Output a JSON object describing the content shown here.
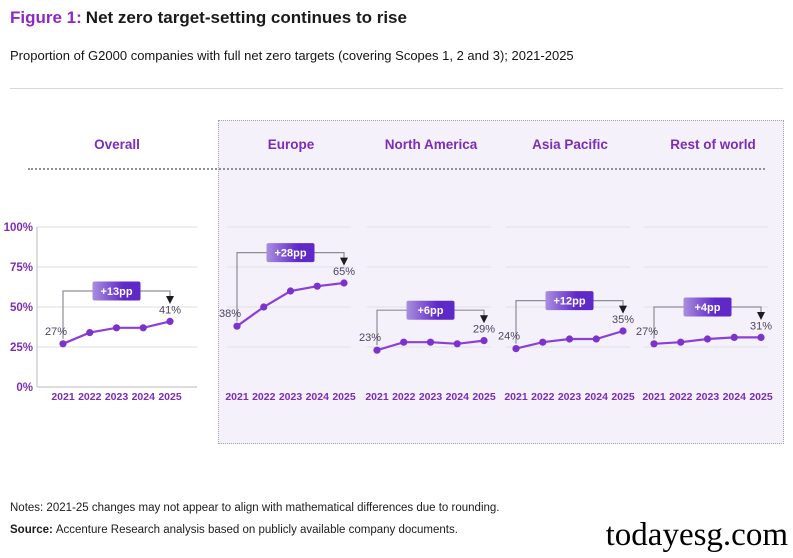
{
  "figure": {
    "label": "Figure 1:",
    "title": "Net zero target-setting continues to rise",
    "subtitle": "Proportion of G2000 companies with full net zero targets (covering Scopes 1, 2 and 3); 2021-2025"
  },
  "notes": "Notes: 2021-25 changes may not appear to align with mathematical differences due to rounding.",
  "source_label": "Source:",
  "source_text": "Accenture Research analysis based on publicly available company documents.",
  "watermark": "todayesg.com",
  "colors": {
    "figure_label": "#8e28c9",
    "header_purple": "#7b2cb8",
    "line_purple": "#8b3fd9",
    "point_purple": "#7c33cc",
    "badge_gradient_start": "#a98fe0",
    "badge_gradient_end": "#5f28c8",
    "bracket_gray": "#8d8d97",
    "arrow_black": "#1b1b22",
    "value_label": "#4c4560",
    "gridline": "#dfdfe4",
    "axis_line": "#c6c6cc",
    "shaded_bg": "#f4f1fb"
  },
  "chart_data": {
    "type": "line",
    "categories": [
      "2021",
      "2022",
      "2023",
      "2024",
      "2025"
    ],
    "ylim": [
      0,
      100
    ],
    "yticks": [
      {
        "label": "0%",
        "value": 0
      },
      {
        "label": "25%",
        "value": 25
      },
      {
        "label": "50%",
        "value": 50
      },
      {
        "label": "75%",
        "value": 75
      },
      {
        "label": "100%",
        "value": 100
      }
    ],
    "grid": true,
    "series": [
      {
        "name": "Overall",
        "values": [
          27,
          34,
          37,
          37,
          41
        ],
        "change_label": "+13pp",
        "start_label": "27%",
        "end_label": "41%"
      },
      {
        "name": "Europe",
        "values": [
          38,
          50,
          60,
          63,
          65
        ],
        "change_label": "+28pp",
        "start_label": "38%",
        "end_label": "65%"
      },
      {
        "name": "North America",
        "values": [
          23,
          28,
          28,
          27,
          29
        ],
        "change_label": "+6pp",
        "start_label": "23%",
        "end_label": "29%"
      },
      {
        "name": "Asia Pacific",
        "values": [
          24,
          28,
          30,
          30,
          35
        ],
        "change_label": "+12pp",
        "start_label": "24%",
        "end_label": "35%"
      },
      {
        "name": "Rest of world",
        "values": [
          27,
          28,
          30,
          31,
          31
        ],
        "change_label": "+4pp",
        "start_label": "27%",
        "end_label": "31%"
      }
    ]
  }
}
